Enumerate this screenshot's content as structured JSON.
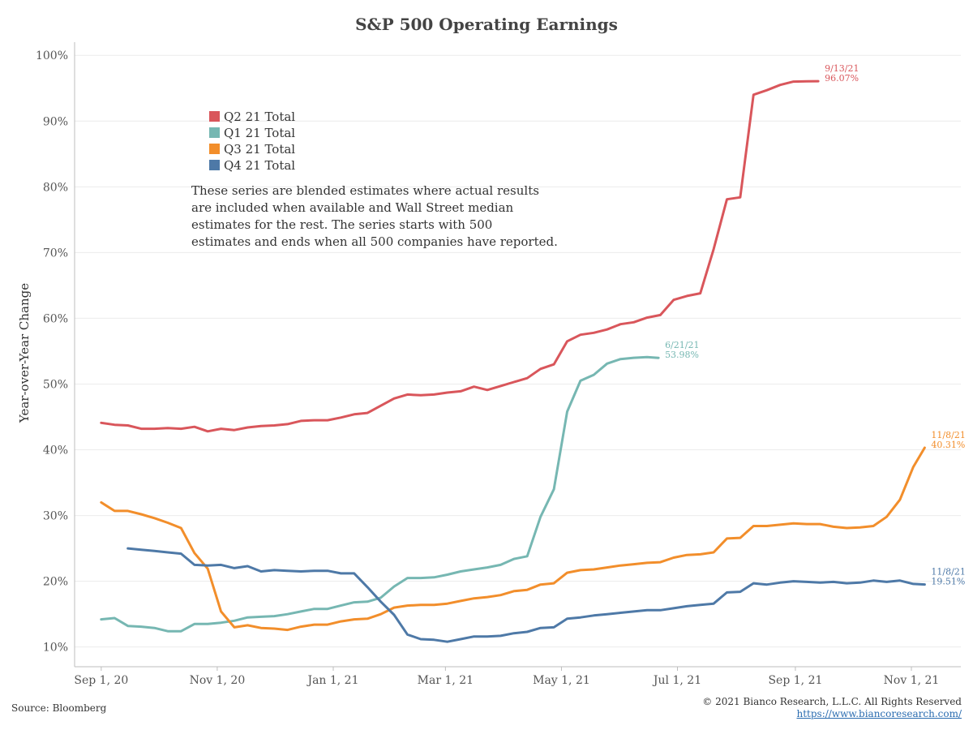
{
  "chart_data": {
    "type": "line",
    "title": "S&P 500 Operating Earnings",
    "ylabel": "Year-over-Year Change",
    "xlabel": "",
    "x_ticks": [
      "Sep 1, 20",
      "Nov 1, 20",
      "Jan 1, 21",
      "Mar 1, 21",
      "May 1, 21",
      "Jul 1, 21",
      "Sep 1, 21",
      "Nov 1, 21"
    ],
    "y_ticks": [
      "10%",
      "20%",
      "30%",
      "40%",
      "50%",
      "60%",
      "70%",
      "80%",
      "90%",
      "100%"
    ],
    "ylim": [
      10,
      100
    ],
    "grid": "horizontal",
    "legend_position": "top-left",
    "annotation": "These series are blended estimates where actual results are included when available and Wall Street median estimates for the rest.  The series starts with 500 estimates and ends when all 500 companies have reported.",
    "series": [
      {
        "name": "Q2 21 Total",
        "color": "#d9565b",
        "end_label_date": "9/13/21",
        "end_label_value": "96.07%",
        "dates": [
          "2020-09-01",
          "2020-09-08",
          "2020-09-15",
          "2020-09-22",
          "2020-09-29",
          "2020-10-06",
          "2020-10-13",
          "2020-10-20",
          "2020-10-27",
          "2020-11-03",
          "2020-11-10",
          "2020-11-17",
          "2020-11-24",
          "2020-12-01",
          "2020-12-08",
          "2020-12-15",
          "2020-12-22",
          "2020-12-29",
          "2021-01-05",
          "2021-01-12",
          "2021-01-19",
          "2021-01-26",
          "2021-02-02",
          "2021-02-09",
          "2021-02-16",
          "2021-02-23",
          "2021-03-02",
          "2021-03-09",
          "2021-03-16",
          "2021-03-23",
          "2021-03-30",
          "2021-04-06",
          "2021-04-13",
          "2021-04-20",
          "2021-04-27",
          "2021-05-04",
          "2021-05-11",
          "2021-05-18",
          "2021-05-25",
          "2021-06-01",
          "2021-06-08",
          "2021-06-15",
          "2021-06-22",
          "2021-06-29",
          "2021-07-06",
          "2021-07-13",
          "2021-07-20",
          "2021-07-27",
          "2021-08-03",
          "2021-08-10",
          "2021-08-17",
          "2021-08-24",
          "2021-08-31",
          "2021-09-07",
          "2021-09-13"
        ],
        "values": [
          44.1,
          43.8,
          43.7,
          43.2,
          43.2,
          43.3,
          43.2,
          43.5,
          42.8,
          43.2,
          43.0,
          43.4,
          43.6,
          43.7,
          43.9,
          44.4,
          44.5,
          44.5,
          44.9,
          45.4,
          45.6,
          46.7,
          47.8,
          48.4,
          48.3,
          48.4,
          48.7,
          48.9,
          49.6,
          49.1,
          49.7,
          50.3,
          50.9,
          52.3,
          53.0,
          56.5,
          57.5,
          57.8,
          58.3,
          59.1,
          59.4,
          60.1,
          60.5,
          62.8,
          63.4,
          63.8,
          70.5,
          78.1,
          78.4,
          94.0,
          94.7,
          95.5,
          96.0,
          96.05,
          96.07
        ]
      },
      {
        "name": "Q1 21 Total",
        "color": "#76b7b2",
        "end_label_date": "6/21/21",
        "end_label_value": "53.98%",
        "dates": [
          "2020-09-01",
          "2020-09-08",
          "2020-09-15",
          "2020-09-22",
          "2020-09-29",
          "2020-10-06",
          "2020-10-13",
          "2020-10-20",
          "2020-10-27",
          "2020-11-03",
          "2020-11-10",
          "2020-11-17",
          "2020-11-24",
          "2020-12-01",
          "2020-12-08",
          "2020-12-15",
          "2020-12-22",
          "2020-12-29",
          "2021-01-05",
          "2021-01-12",
          "2021-01-19",
          "2021-01-26",
          "2021-02-02",
          "2021-02-09",
          "2021-02-16",
          "2021-02-23",
          "2021-03-02",
          "2021-03-09",
          "2021-03-16",
          "2021-03-23",
          "2021-03-30",
          "2021-04-06",
          "2021-04-13",
          "2021-04-20",
          "2021-04-27",
          "2021-05-04",
          "2021-05-11",
          "2021-05-18",
          "2021-05-25",
          "2021-06-01",
          "2021-06-08",
          "2021-06-15",
          "2021-06-21"
        ],
        "values": [
          14.2,
          14.4,
          13.2,
          13.1,
          12.9,
          12.4,
          12.4,
          13.5,
          13.5,
          13.7,
          14.0,
          14.5,
          14.6,
          14.7,
          15.0,
          15.4,
          15.8,
          15.8,
          16.3,
          16.8,
          16.9,
          17.5,
          19.2,
          20.5,
          20.5,
          20.6,
          21.0,
          21.5,
          21.8,
          22.1,
          22.5,
          23.4,
          23.8,
          29.8,
          34.0,
          45.8,
          50.5,
          51.4,
          53.1,
          53.8,
          54.0,
          54.1,
          53.98
        ]
      },
      {
        "name": "Q3 21 Total",
        "color": "#f28e2b",
        "end_label_date": "11/8/21",
        "end_label_value": "40.31%",
        "dates": [
          "2020-09-01",
          "2020-09-08",
          "2020-09-15",
          "2020-09-22",
          "2020-09-29",
          "2020-10-06",
          "2020-10-13",
          "2020-10-20",
          "2020-10-27",
          "2020-11-03",
          "2020-11-10",
          "2020-11-17",
          "2020-11-24",
          "2020-12-01",
          "2020-12-08",
          "2020-12-15",
          "2020-12-22",
          "2020-12-29",
          "2021-01-05",
          "2021-01-12",
          "2021-01-19",
          "2021-01-26",
          "2021-02-02",
          "2021-02-09",
          "2021-02-16",
          "2021-02-23",
          "2021-03-02",
          "2021-03-09",
          "2021-03-16",
          "2021-03-23",
          "2021-03-30",
          "2021-04-06",
          "2021-04-13",
          "2021-04-20",
          "2021-04-27",
          "2021-05-04",
          "2021-05-11",
          "2021-05-18",
          "2021-05-25",
          "2021-06-01",
          "2021-06-08",
          "2021-06-15",
          "2021-06-22",
          "2021-06-29",
          "2021-07-06",
          "2021-07-13",
          "2021-07-20",
          "2021-07-27",
          "2021-08-03",
          "2021-08-10",
          "2021-08-17",
          "2021-08-24",
          "2021-08-31",
          "2021-09-07",
          "2021-09-14",
          "2021-09-21",
          "2021-09-28",
          "2021-10-05",
          "2021-10-12",
          "2021-10-19",
          "2021-10-26",
          "2021-11-02",
          "2021-11-08"
        ],
        "values": [
          32.0,
          30.7,
          30.7,
          30.2,
          29.6,
          28.9,
          28.1,
          24.3,
          21.9,
          15.4,
          13.0,
          13.3,
          12.9,
          12.8,
          12.6,
          13.1,
          13.4,
          13.4,
          13.9,
          14.2,
          14.3,
          15.0,
          16.0,
          16.3,
          16.4,
          16.4,
          16.6,
          17.0,
          17.4,
          17.6,
          17.9,
          18.5,
          18.7,
          19.5,
          19.7,
          21.3,
          21.7,
          21.8,
          22.1,
          22.4,
          22.6,
          22.8,
          22.9,
          23.6,
          24.0,
          24.1,
          24.4,
          26.5,
          26.6,
          28.4,
          28.4,
          28.6,
          28.8,
          28.7,
          28.7,
          28.3,
          28.1,
          28.2,
          28.4,
          29.8,
          32.4,
          37.4,
          40.31
        ]
      },
      {
        "name": "Q4 21 Total",
        "color": "#4e79a7",
        "end_label_date": "11/8/21",
        "end_label_value": "19.51%",
        "dates": [
          "2020-09-15",
          "2020-09-22",
          "2020-09-29",
          "2020-10-06",
          "2020-10-13",
          "2020-10-20",
          "2020-10-27",
          "2020-11-03",
          "2020-11-10",
          "2020-11-17",
          "2020-11-24",
          "2020-12-01",
          "2020-12-08",
          "2020-12-15",
          "2020-12-22",
          "2020-12-29",
          "2021-01-05",
          "2021-01-12",
          "2021-01-19",
          "2021-01-26",
          "2021-02-02",
          "2021-02-09",
          "2021-02-16",
          "2021-02-23",
          "2021-03-02",
          "2021-03-09",
          "2021-03-16",
          "2021-03-23",
          "2021-03-30",
          "2021-04-06",
          "2021-04-13",
          "2021-04-20",
          "2021-04-27",
          "2021-05-04",
          "2021-05-11",
          "2021-05-18",
          "2021-05-25",
          "2021-06-01",
          "2021-06-08",
          "2021-06-15",
          "2021-06-22",
          "2021-06-29",
          "2021-07-06",
          "2021-07-13",
          "2021-07-20",
          "2021-07-27",
          "2021-08-03",
          "2021-08-10",
          "2021-08-17",
          "2021-08-24",
          "2021-08-31",
          "2021-09-07",
          "2021-09-14",
          "2021-09-21",
          "2021-09-28",
          "2021-10-05",
          "2021-10-12",
          "2021-10-19",
          "2021-10-26",
          "2021-11-02",
          "2021-11-08"
        ],
        "values": [
          25.0,
          24.8,
          24.6,
          24.4,
          24.2,
          22.5,
          22.4,
          22.5,
          22.0,
          22.3,
          21.5,
          21.7,
          21.6,
          21.5,
          21.6,
          21.6,
          21.2,
          21.2,
          19.1,
          16.9,
          14.9,
          11.9,
          11.2,
          11.1,
          10.8,
          11.2,
          11.6,
          11.6,
          11.7,
          12.1,
          12.3,
          12.9,
          13.0,
          14.3,
          14.5,
          14.8,
          15.0,
          15.2,
          15.4,
          15.6,
          15.6,
          15.9,
          16.2,
          16.4,
          16.6,
          18.3,
          18.4,
          19.7,
          19.5,
          19.8,
          20.0,
          19.9,
          19.8,
          19.9,
          19.7,
          19.8,
          20.1,
          19.9,
          20.1,
          19.6,
          19.51
        ]
      }
    ]
  },
  "footer": {
    "source": "Source: Bloomberg",
    "copyright": "© 2021 Bianco Research, L.L.C. All Rights Reserved",
    "url": "https://www.biancoresearch.com/"
  }
}
